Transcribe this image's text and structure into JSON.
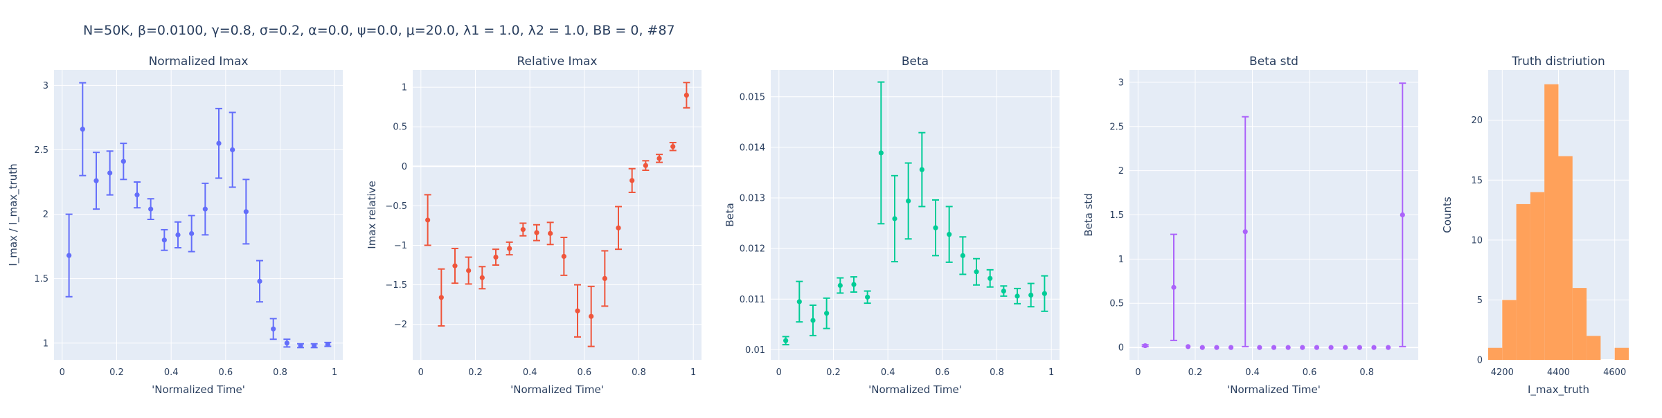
{
  "suptitle": "N=50K, β=0.0100, γ=0.8, σ=0.2,  α=0.0, ψ=0.0, μ=20.0, λ1 = 1.0, λ2 = 1.0, BB = 0, #87",
  "chart_data": [
    {
      "type": "scatter",
      "title": "Normalized Imax",
      "xlabel": "'Normalized Time'",
      "ylabel": "I_max / I_max_truth",
      "color": "#636efa",
      "xlim": [
        -0.03,
        1.03
      ],
      "ylim": [
        0.87,
        3.12
      ],
      "xticks": [
        0,
        0.2,
        0.4,
        0.6,
        0.8,
        1
      ],
      "xtick_labels": [
        "0",
        "0.2",
        "0.4",
        "0.6",
        "0.8",
        "1"
      ],
      "yticks": [
        1,
        1.5,
        2,
        2.5,
        3
      ],
      "ytick_labels": [
        "1",
        "1.5",
        "2",
        "2.5",
        "3"
      ],
      "x": [
        0.025,
        0.075,
        0.125,
        0.175,
        0.225,
        0.275,
        0.325,
        0.375,
        0.425,
        0.475,
        0.525,
        0.575,
        0.625,
        0.675,
        0.725,
        0.775,
        0.825,
        0.875,
        0.925,
        0.975
      ],
      "y": [
        1.68,
        2.66,
        2.26,
        2.32,
        2.41,
        2.15,
        2.04,
        1.8,
        1.84,
        1.85,
        2.04,
        2.55,
        2.5,
        2.02,
        1.48,
        1.11,
        1.0,
        0.98,
        0.98,
        0.99
      ],
      "err": [
        0.32,
        0.36,
        0.22,
        0.17,
        0.14,
        0.1,
        0.08,
        0.08,
        0.1,
        0.14,
        0.2,
        0.27,
        0.29,
        0.25,
        0.16,
        0.08,
        0.03,
        0.015,
        0.015,
        0.015
      ]
    },
    {
      "type": "scatter",
      "title": "Relative Imax",
      "xlabel": "'Normalized Time'",
      "ylabel": "Imax relative",
      "color": "#ef553b",
      "xlim": [
        -0.03,
        1.03
      ],
      "ylim": [
        -2.45,
        1.22
      ],
      "xticks": [
        0,
        0.2,
        0.4,
        0.6,
        0.8,
        1
      ],
      "xtick_labels": [
        "0",
        "0.2",
        "0.4",
        "0.6",
        "0.8",
        "1"
      ],
      "yticks": [
        -2,
        -1.5,
        -1,
        -0.5,
        0,
        0.5,
        1
      ],
      "ytick_labels": [
        "−2",
        "−1.5",
        "−1",
        "−0.5",
        "0",
        "0.5",
        "1"
      ],
      "x": [
        0.025,
        0.075,
        0.125,
        0.175,
        0.225,
        0.275,
        0.325,
        0.375,
        0.425,
        0.475,
        0.525,
        0.575,
        0.625,
        0.675,
        0.725,
        0.775,
        0.825,
        0.875,
        0.925,
        0.975
      ],
      "y": [
        -0.68,
        -1.66,
        -1.26,
        -1.32,
        -1.41,
        -1.15,
        -1.04,
        -0.8,
        -0.84,
        -0.85,
        -1.14,
        -1.83,
        -1.9,
        -1.42,
        -0.78,
        -0.18,
        0.01,
        0.1,
        0.25,
        0.9
      ],
      "err": [
        0.32,
        0.36,
        0.22,
        0.17,
        0.14,
        0.1,
        0.08,
        0.08,
        0.1,
        0.14,
        0.24,
        0.33,
        0.38,
        0.35,
        0.27,
        0.15,
        0.06,
        0.05,
        0.05,
        0.16
      ]
    },
    {
      "type": "scatter",
      "title": "Beta",
      "xlabel": "'Normalized Time'",
      "ylabel": "Beta",
      "color": "#00cc96",
      "xlim": [
        -0.03,
        1.03
      ],
      "ylim": [
        0.0098,
        0.01553
      ],
      "xticks": [
        0,
        0.2,
        0.4,
        0.6,
        0.8,
        1
      ],
      "xtick_labels": [
        "0",
        "0.2",
        "0.4",
        "0.6",
        "0.8",
        "1"
      ],
      "yticks": [
        0.01,
        0.011,
        0.012,
        0.013,
        0.014,
        0.015
      ],
      "ytick_labels": [
        "0.01",
        "0.011",
        "0.012",
        "0.013",
        "0.014",
        "0.015"
      ],
      "x": [
        0.025,
        0.075,
        0.125,
        0.175,
        0.225,
        0.275,
        0.325,
        0.375,
        0.425,
        0.475,
        0.525,
        0.575,
        0.625,
        0.675,
        0.725,
        0.775,
        0.825,
        0.875,
        0.925,
        0.975
      ],
      "y": [
        0.01018,
        0.01095,
        0.01058,
        0.01072,
        0.01127,
        0.01129,
        0.01104,
        0.01389,
        0.01259,
        0.01294,
        0.01356,
        0.01241,
        0.01228,
        0.01186,
        0.01154,
        0.01141,
        0.01116,
        0.01106,
        0.01108,
        0.01111
      ],
      "err": [
        8e-05,
        0.0004,
        0.0003,
        0.0003,
        0.00015,
        0.00015,
        0.00012,
        0.0014,
        0.00085,
        0.00075,
        0.00073,
        0.00055,
        0.00055,
        0.00037,
        0.00026,
        0.00017,
        0.0001,
        0.00015,
        0.00023,
        0.00035
      ]
    },
    {
      "type": "scatter",
      "title": "Beta std",
      "xlabel": "'Normalized Time'",
      "ylabel": "Beta std",
      "color": "#ab63fa",
      "xlim": [
        -0.03,
        0.98
      ],
      "ylim": [
        -0.14,
        3.14
      ],
      "xticks": [
        0,
        0.2,
        0.4,
        0.6,
        0.8
      ],
      "xtick_labels": [
        "0",
        "0.2",
        "0.4",
        "0.6",
        "0.8"
      ],
      "yticks": [
        0,
        0.5,
        1,
        1.5,
        2,
        2.5,
        3
      ],
      "ytick_labels": [
        "0",
        "0.5",
        "1",
        "1.5",
        "2",
        "2.5",
        "3"
      ],
      "x": [
        0.025,
        0.125,
        0.175,
        0.225,
        0.275,
        0.325,
        0.375,
        0.425,
        0.475,
        0.525,
        0.575,
        0.625,
        0.675,
        0.725,
        0.775,
        0.825,
        0.875,
        0.925
      ],
      "y": [
        0.02,
        0.68,
        0.01,
        0.0,
        0.0,
        0.0,
        1.31,
        0.0,
        0.0,
        0.0,
        0.0,
        0.0,
        0.0,
        0.0,
        0.0,
        0.0,
        0.0,
        1.5
      ],
      "err": [
        0.01,
        0.6,
        0.0,
        0.0,
        0.0,
        0.0,
        1.3,
        0.0,
        0.0,
        0.0,
        0.0,
        0.0,
        0.0,
        0.0,
        0.0,
        0.0,
        0.0,
        1.49
      ]
    },
    {
      "type": "bar",
      "title": "Truth distriution",
      "xlabel": "I_max_truth",
      "ylabel": "Counts",
      "color": "#ffa15a",
      "xlim": [
        4150,
        4650
      ],
      "ylim": [
        0,
        24.2
      ],
      "xticks": [
        4200,
        4400,
        4600
      ],
      "xtick_labels": [
        "4200",
        "4400",
        "4600"
      ],
      "yticks": [
        0,
        5,
        10,
        15,
        20
      ],
      "ytick_labels": [
        "0",
        "5",
        "10",
        "15",
        "20"
      ],
      "bin_edges": [
        4150,
        4200,
        4250,
        4300,
        4350,
        4400,
        4450,
        4500,
        4550,
        4600,
        4650
      ],
      "values": [
        1,
        5,
        13,
        14,
        23,
        17,
        6,
        2,
        0,
        1
      ]
    }
  ]
}
